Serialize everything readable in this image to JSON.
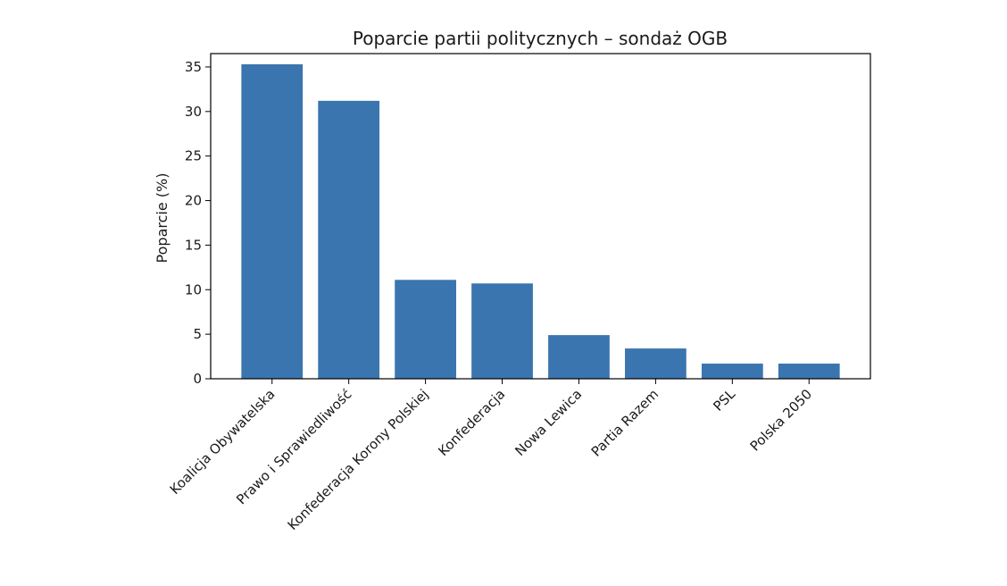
{
  "chart_data": {
    "type": "bar",
    "title": "Poparcie partii politycznych – sondaż OGB",
    "xlabel": "",
    "ylabel": "Poparcie (%)",
    "categories": [
      "Koalicja Obywatelska",
      "Prawo i Sprawiedliwość",
      "Konfederacja Korony Polskiej",
      "Konfederacja",
      "Nowa Lewica",
      "Partia Razem",
      "PSL",
      "Polska 2050"
    ],
    "values": [
      35.3,
      31.2,
      11.1,
      10.7,
      4.9,
      3.4,
      1.7,
      1.7
    ],
    "ylim": [
      0,
      36.5
    ],
    "yticks": [
      0,
      5,
      10,
      15,
      20,
      25,
      30,
      35
    ],
    "grid": false,
    "legend": "none",
    "colors": {
      "bar": "#3a75af",
      "axis": "#000000",
      "text": "#1a1a1a"
    }
  }
}
